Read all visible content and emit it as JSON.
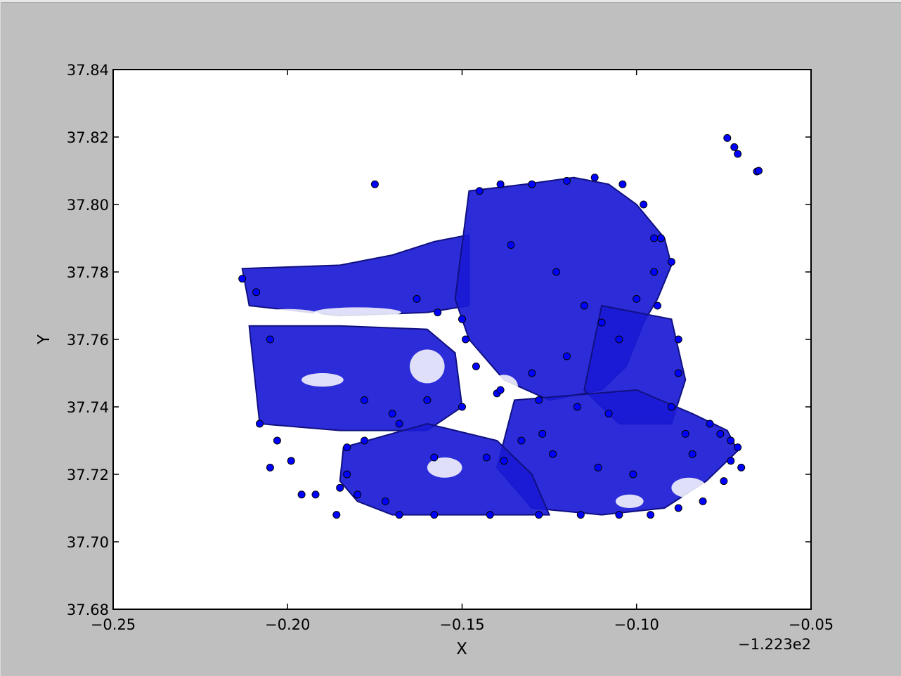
{
  "chart_data": {
    "type": "scatter",
    "title": "",
    "xlabel": "X",
    "ylabel": "Y",
    "x_offset_label": "−1.223e2",
    "xlim": [
      -0.25,
      -0.05
    ],
    "ylim": [
      37.68,
      37.84
    ],
    "xticks": [
      -0.25,
      -0.2,
      -0.15,
      -0.1,
      -0.05
    ],
    "xtick_labels": [
      "−0.25",
      "−0.20",
      "−0.15",
      "−0.10",
      "−0.05"
    ],
    "yticks": [
      37.68,
      37.7,
      37.72,
      37.74,
      37.76,
      37.78,
      37.8,
      37.82,
      37.84
    ],
    "ytick_labels": [
      "37.68",
      "37.70",
      "37.72",
      "37.74",
      "37.76",
      "37.78",
      "37.80",
      "37.82",
      "37.84"
    ],
    "grid": false,
    "legend": "none",
    "marker_color": "#0000ff",
    "marker_edge_color": "#000000",
    "series": [
      {
        "x": [
          -0.213,
          -0.209,
          -0.205,
          -0.208,
          -0.203,
          -0.205,
          -0.199,
          -0.192,
          -0.196,
          -0.186,
          -0.175,
          -0.145,
          -0.139,
          -0.13,
          -0.12,
          -0.112,
          -0.104,
          -0.098,
          -0.093,
          -0.09,
          -0.094,
          -0.088,
          -0.088,
          -0.09,
          -0.086,
          -0.084,
          -0.079,
          -0.076,
          -0.073,
          -0.071,
          -0.073,
          -0.07,
          -0.075,
          -0.081,
          -0.088,
          -0.096,
          -0.105,
          -0.116,
          -0.128,
          -0.142,
          -0.158,
          -0.168,
          -0.172,
          -0.18,
          -0.185,
          -0.183,
          -0.183,
          -0.178,
          -0.17,
          -0.16,
          -0.15,
          -0.14,
          -0.13,
          -0.12,
          -0.11,
          -0.1,
          -0.095,
          -0.163,
          -0.157,
          -0.15,
          -0.149,
          -0.146,
          -0.139,
          -0.128,
          -0.117,
          -0.108,
          -0.136,
          -0.123,
          -0.115,
          -0.105,
          -0.178,
          -0.168,
          -0.158,
          -0.143,
          -0.138,
          -0.133,
          -0.124,
          -0.111,
          -0.101,
          -0.127,
          -0.095,
          -0.074,
          -0.072,
          -0.071,
          -0.0655,
          -0.065
        ],
        "y": [
          37.778,
          37.774,
          37.76,
          37.735,
          37.73,
          37.722,
          37.724,
          37.714,
          37.714,
          37.708,
          37.806,
          37.804,
          37.806,
          37.806,
          37.807,
          37.808,
          37.806,
          37.8,
          37.79,
          37.783,
          37.77,
          37.76,
          37.75,
          37.74,
          37.732,
          37.726,
          37.735,
          37.732,
          37.73,
          37.728,
          37.724,
          37.722,
          37.718,
          37.712,
          37.71,
          37.708,
          37.708,
          37.708,
          37.708,
          37.708,
          37.708,
          37.708,
          37.712,
          37.714,
          37.716,
          37.72,
          37.728,
          37.73,
          37.738,
          37.742,
          37.74,
          37.744,
          37.75,
          37.755,
          37.765,
          37.772,
          37.78,
          37.772,
          37.768,
          37.766,
          37.76,
          37.752,
          37.745,
          37.742,
          37.74,
          37.738,
          37.788,
          37.78,
          37.77,
          37.76,
          37.742,
          37.735,
          37.725,
          37.725,
          37.724,
          37.73,
          37.726,
          37.722,
          37.72,
          37.732,
          37.79,
          37.8197,
          37.817,
          37.815,
          37.8098,
          37.81
        ]
      }
    ]
  }
}
